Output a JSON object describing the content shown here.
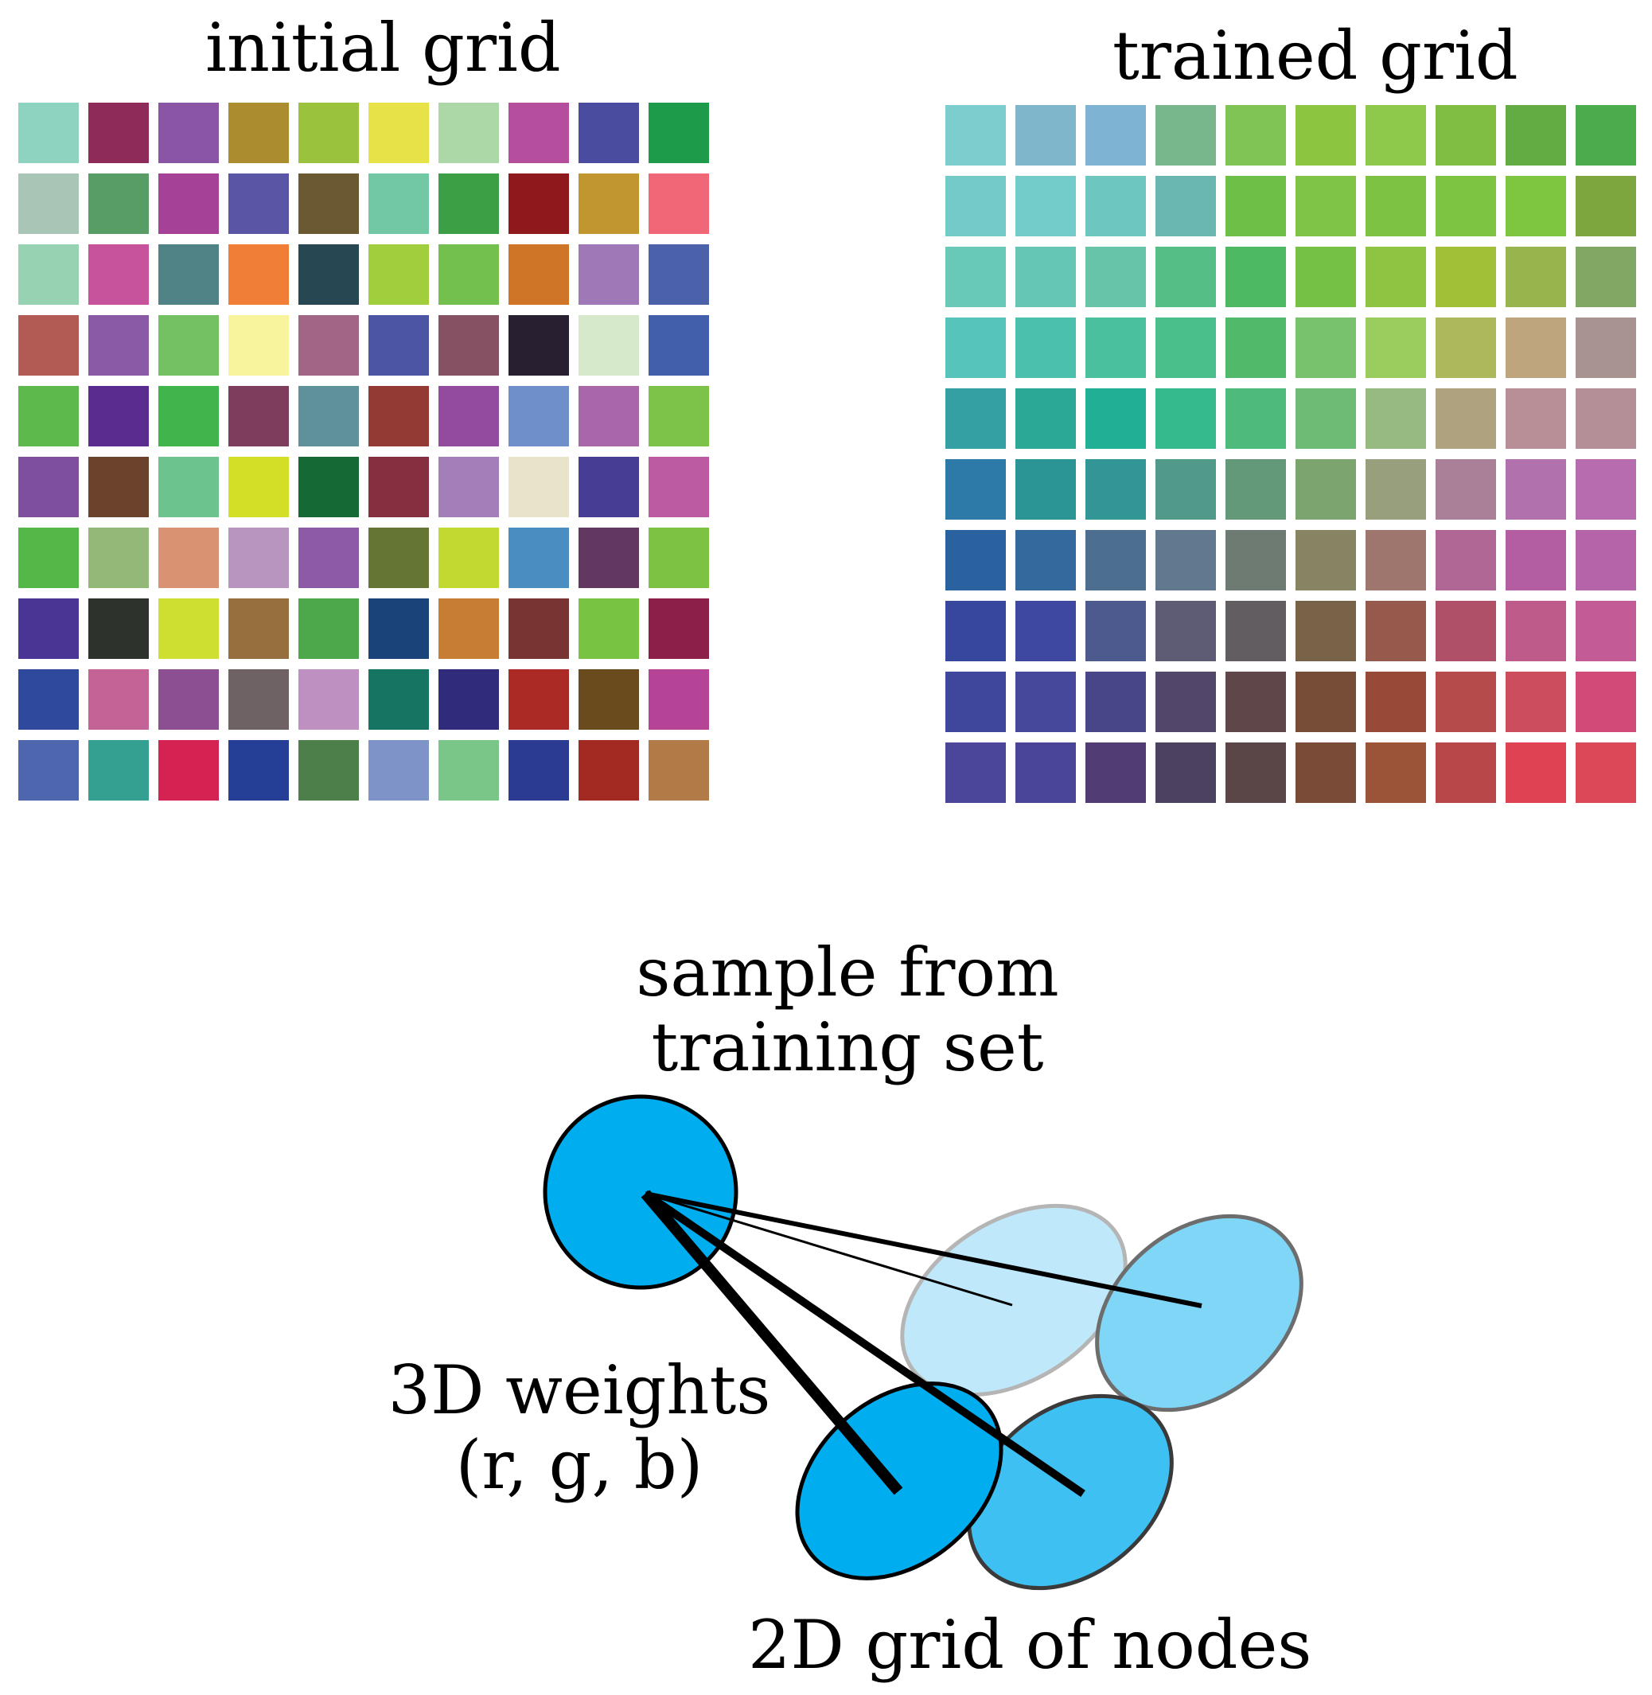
{
  "initial_grid": {
    "title": "initial grid",
    "colors": [
      [
        "#8dd3c0",
        "#8f2b58",
        "#8a55a4",
        "#ab8c2e",
        "#9bc23d",
        "#e6e248",
        "#acd7a7",
        "#b54f9d",
        "#4a4c9f",
        "#1e9b4a"
      ],
      [
        "#a9c5b6",
        "#589d65",
        "#a54196",
        "#5a55a4",
        "#6b5a31",
        "#72c7a4",
        "#3c9e45",
        "#8e191d",
        "#c2962f",
        "#f06878"
      ],
      [
        "#97d3b2",
        "#c7539d",
        "#4f8385",
        "#f07e37",
        "#274853",
        "#a0ce3c",
        "#74c04e",
        "#cf7528",
        "#9e78b7",
        "#4b62ab"
      ],
      [
        "#b25a54",
        "#8a5aa6",
        "#73c162",
        "#f7f49d",
        "#a26586",
        "#4b55a4",
        "#855163",
        "#281f30",
        "#d6e9cb",
        "#415fab"
      ],
      [
        "#5db94b",
        "#5a2c8f",
        "#3fb54c",
        "#7f3d5e",
        "#5e9199",
        "#923a33",
        "#924b9f",
        "#6f8fcb",
        "#a966a9",
        "#7dc249"
      ],
      [
        "#7f4f9f",
        "#6b432d",
        "#6cc38d",
        "#d3df26",
        "#156934",
        "#862f40",
        "#a27fb8",
        "#e8e4cc",
        "#473d94",
        "#bd5ba2"
      ],
      [
        "#54b848",
        "#93b978",
        "#d99272",
        "#b795bf",
        "#8c5aa6",
        "#657634",
        "#c2d932",
        "#4a8ec1",
        "#623760",
        "#7dc242"
      ],
      [
        "#4a3595",
        "#2d322c",
        "#cfdf31",
        "#976e3d",
        "#4ca84b",
        "#1a4479",
        "#c87d34",
        "#783333",
        "#79c342",
        "#8c1f4a"
      ],
      [
        "#2f4a9c",
        "#c46396",
        "#8c4f91",
        "#6e6264",
        "#be90c1",
        "#157462",
        "#302b7a",
        "#ab2a25",
        "#6a4b1e",
        "#b54497"
      ],
      [
        "#4d66ae",
        "#34a092",
        "#d42252",
        "#263f96",
        "#4c7f4a",
        "#7e93c7",
        "#79c688",
        "#2b3b92",
        "#a22a22",
        "#b17a46"
      ]
    ]
  },
  "trained_grid": {
    "title": "trained grid",
    "colors": [
      [
        "#7ccdcd",
        "#7fb6cb",
        "#7fb3d3",
        "#78b68c",
        "#80c456",
        "#8cc640",
        "#8ec94c",
        "#7fbd43",
        "#62ac43",
        "#4aac4a"
      ],
      [
        "#74cac7",
        "#73cbca",
        "#6ec6c1",
        "#69b7b0",
        "#6dbf48",
        "#7fc446",
        "#7dc242",
        "#7dc442",
        "#7ec63f",
        "#7da73e"
      ],
      [
        "#68c9b9",
        "#66c6b5",
        "#68c4a9",
        "#54be86",
        "#4db963",
        "#74c145",
        "#8fc443",
        "#a1bf37",
        "#98b54d",
        "#80a763"
      ],
      [
        "#57c4bb",
        "#4bc1ad",
        "#4bc09e",
        "#4bbf8b",
        "#50b96a",
        "#78c26e",
        "#9acd5d",
        "#adb75c",
        "#bfa57d",
        "#a99390"
      ],
      [
        "#34a0a4",
        "#2ba996",
        "#21b095",
        "#35ba8e",
        "#4dbb7c",
        "#6dbb75",
        "#96ba80",
        "#afa27e",
        "#b88f96",
        "#b48f97"
      ],
      [
        "#2d7aa8",
        "#2b9596",
        "#339696",
        "#519a89",
        "#639878",
        "#7ba46e",
        "#979f7d",
        "#aa7f98",
        "#b171ac",
        "#b86cb0"
      ],
      [
        "#2a62a0",
        "#33699d",
        "#4c6e8f",
        "#61788f",
        "#6d7b73",
        "#868462",
        "#9e766e",
        "#b06796",
        "#b35da3",
        "#b564a9"
      ],
      [
        "#38479e",
        "#3f48a0",
        "#4c5a8e",
        "#5e5b75",
        "#625d60",
        "#786248",
        "#955a4b",
        "#b04f68",
        "#bf5b8b",
        "#c35b96"
      ],
      [
        "#3f479c",
        "#46489c",
        "#484688",
        "#52466a",
        "#5e4649",
        "#774d37",
        "#974a38",
        "#b54b4a",
        "#cc4d5c",
        "#d24a78"
      ],
      [
        "#4b4699",
        "#4b4597",
        "#513d74",
        "#4c415e",
        "#5a4646",
        "#7a4c37",
        "#9c5438",
        "#b8474a",
        "#df4252",
        "#dd4858"
      ]
    ]
  },
  "labels": {
    "sample": [
      "sample from",
      "training set"
    ],
    "weights": [
      "3D weights",
      "(r, g, b)"
    ],
    "nodes": "2D grid of nodes"
  },
  "diagram_colors": {
    "sample_fill": "#00aeef",
    "node_bottom_left": "#00aeef",
    "node_bottom_right": "#3fc0f2",
    "node_top_right": "#80d6f7",
    "node_top_left": "#bfe9fb"
  }
}
